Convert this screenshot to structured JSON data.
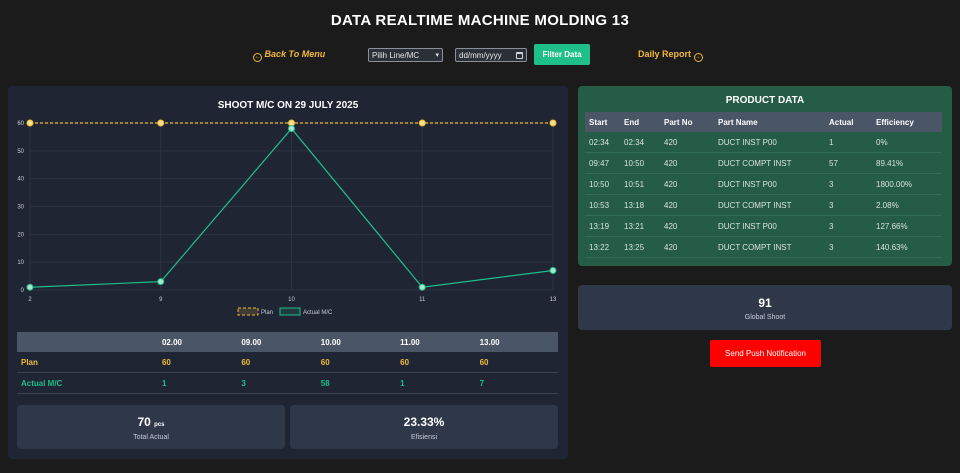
{
  "header": {
    "title": "DATA REALTIME MACHINE MOLDING 13"
  },
  "toolbar": {
    "back_label": "Back To Menu",
    "back_icon": "arrow-left-circle-icon",
    "line_select_value": "Pilih Line/MC",
    "date_placeholder": "dd/mm/yyyy",
    "filter_label": "Filter Data",
    "daily_label": "Daily Report",
    "daily_icon": "arrow-right-circle-icon"
  },
  "colors": {
    "plan": "#f2b93b",
    "actual": "#1fbf8a",
    "push": "#ff0000",
    "product_panel": "#255c45"
  },
  "chart_data": {
    "type": "line",
    "title": "SHOOT M/C ON 29 JULY 2025",
    "x": [
      "2",
      "9",
      "10",
      "11",
      "13"
    ],
    "series": [
      {
        "name": "Plan",
        "values": [
          60,
          60,
          60,
          60,
          60
        ]
      },
      {
        "name": "Actual M/C",
        "values": [
          1,
          3,
          58,
          1,
          7
        ]
      }
    ],
    "ylim": [
      0,
      60
    ],
    "yticks": [
      0,
      10,
      20,
      30,
      40,
      50,
      60
    ],
    "grid": true,
    "legend": "bottom-center"
  },
  "summary_table": {
    "headers": [
      "02.00",
      "09.00",
      "10.00",
      "11.00",
      "13.00"
    ],
    "rows": [
      {
        "label": "Plan",
        "values": [
          "60",
          "60",
          "60",
          "60",
          "60"
        ]
      },
      {
        "label": "Actual M/C",
        "values": [
          "1",
          "3",
          "58",
          "1",
          "7"
        ]
      }
    ]
  },
  "stats": {
    "total_actual": {
      "value": "70",
      "unit": "pcs",
      "label": "Total Actual"
    },
    "efisiensi": {
      "value": "23.33%",
      "label": "Efisiensi"
    }
  },
  "product": {
    "title": "PRODUCT DATA",
    "headers": [
      "Start",
      "End",
      "Part No",
      "Part Name",
      "Actual",
      "Efficiency"
    ],
    "rows": [
      [
        "02:34",
        "02:34",
        "420",
        "DUCT INST P00",
        "1",
        "0%"
      ],
      [
        "09:47",
        "10:50",
        "420",
        "DUCT COMPT INST",
        "57",
        "89.41%"
      ],
      [
        "10:50",
        "10:51",
        "420",
        "DUCT INST P00",
        "3",
        "1800.00%"
      ],
      [
        "10:53",
        "13:18",
        "420",
        "DUCT COMPT INST",
        "3",
        "2.08%"
      ],
      [
        "13:19",
        "13:21",
        "420",
        "DUCT INST P00",
        "3",
        "127.66%"
      ],
      [
        "13:22",
        "13:25",
        "420",
        "DUCT COMPT INST",
        "3",
        "140.63%"
      ]
    ]
  },
  "global": {
    "value": "91",
    "label": "Global Shoot"
  },
  "push": {
    "label": "Send Push Notification"
  }
}
